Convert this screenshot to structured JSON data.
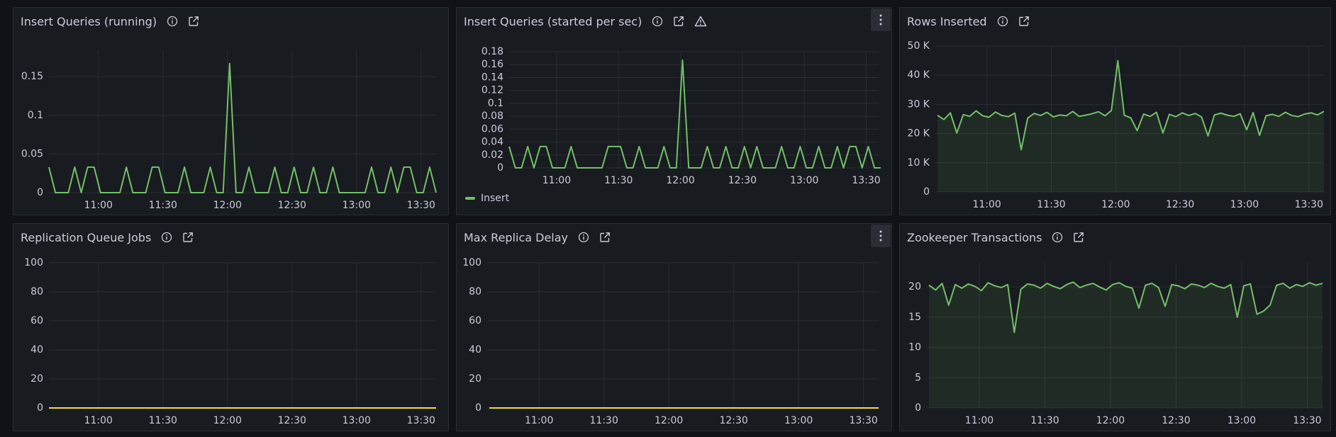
{
  "chart_data": [
    {
      "type": "line",
      "title": "Insert Queries (running)",
      "x": [
        "10:37",
        "10:40",
        "10:43",
        "10:46",
        "10:49",
        "10:52",
        "10:55",
        "10:58",
        "11:01",
        "11:04",
        "11:07",
        "11:10",
        "11:13",
        "11:16",
        "11:19",
        "11:22",
        "11:25",
        "11:28",
        "11:31",
        "11:34",
        "11:37",
        "11:40",
        "11:43",
        "11:46",
        "11:49",
        "11:52",
        "11:55",
        "11:58",
        "12:01",
        "12:04",
        "12:07",
        "12:10",
        "12:13",
        "12:16",
        "12:19",
        "12:22",
        "12:25",
        "12:28",
        "12:31",
        "12:34",
        "12:37",
        "12:40",
        "12:43",
        "12:46",
        "12:49",
        "12:52",
        "12:55",
        "12:58",
        "13:01",
        "13:04",
        "13:07",
        "13:10",
        "13:13",
        "13:16",
        "13:19",
        "13:22",
        "13:25",
        "13:28",
        "13:31",
        "13:34",
        "13:37"
      ],
      "values": [
        0.033,
        0,
        0,
        0,
        0.033,
        0,
        0.033,
        0.033,
        0,
        0,
        0,
        0,
        0.033,
        0,
        0,
        0,
        0.033,
        0.033,
        0,
        0,
        0,
        0.033,
        0,
        0,
        0,
        0.033,
        0,
        0,
        0.167,
        0,
        0,
        0.033,
        0,
        0,
        0,
        0.033,
        0,
        0,
        0.033,
        0,
        0,
        0.033,
        0,
        0,
        0.033,
        0,
        0,
        0,
        0,
        0,
        0.033,
        0,
        0,
        0.033,
        0,
        0.033,
        0.033,
        0,
        0,
        0.033,
        0
      ],
      "color": "#73bf69",
      "fill_area": false,
      "xlim": [
        "10:37",
        "13:37"
      ],
      "xticks": [
        "11:00",
        "11:30",
        "12:00",
        "12:30",
        "13:00",
        "13:30"
      ],
      "ylim": [
        0,
        0.185
      ],
      "yticks": [
        0,
        0.05,
        0.1,
        0.15
      ],
      "grid": true
    },
    {
      "type": "line",
      "title": "Insert Queries (started per sec)",
      "x": [
        "10:37",
        "10:40",
        "10:43",
        "10:46",
        "10:49",
        "10:52",
        "10:55",
        "10:58",
        "11:01",
        "11:04",
        "11:07",
        "11:10",
        "11:13",
        "11:16",
        "11:19",
        "11:22",
        "11:25",
        "11:28",
        "11:31",
        "11:34",
        "11:37",
        "11:40",
        "11:43",
        "11:46",
        "11:49",
        "11:52",
        "11:55",
        "11:58",
        "12:01",
        "12:04",
        "12:07",
        "12:10",
        "12:13",
        "12:16",
        "12:19",
        "12:22",
        "12:25",
        "12:28",
        "12:31",
        "12:34",
        "12:37",
        "12:40",
        "12:43",
        "12:46",
        "12:49",
        "12:52",
        "12:55",
        "12:58",
        "13:01",
        "13:04",
        "13:07",
        "13:10",
        "13:13",
        "13:16",
        "13:19",
        "13:22",
        "13:25",
        "13:28",
        "13:31",
        "13:34",
        "13:37"
      ],
      "series": [
        {
          "name": "Insert",
          "color": "#73bf69",
          "values": [
            0.033,
            0,
            0,
            0.033,
            0,
            0.033,
            0.033,
            0,
            0,
            0,
            0.033,
            0,
            0,
            0,
            0,
            0,
            0.033,
            0.033,
            0.033,
            0,
            0,
            0.033,
            0,
            0,
            0,
            0.033,
            0,
            0,
            0.167,
            0,
            0,
            0,
            0.033,
            0,
            0,
            0.033,
            0,
            0,
            0.033,
            0,
            0.033,
            0,
            0,
            0,
            0.033,
            0,
            0,
            0.033,
            0,
            0,
            0.033,
            0,
            0,
            0.033,
            0,
            0.033,
            0.033,
            0,
            0.033,
            0,
            0
          ]
        }
      ],
      "fill_area": false,
      "legend": "bottom-left",
      "xlim": [
        "10:37",
        "13:36"
      ],
      "xticks": [
        "11:00",
        "11:30",
        "12:00",
        "12:30",
        "13:00",
        "13:30"
      ],
      "ylim": [
        0,
        0.18
      ],
      "yticks": [
        0,
        0.02,
        0.04,
        0.06,
        0.08,
        0.1,
        0.12,
        0.14,
        0.16,
        0.18
      ],
      "grid": true
    },
    {
      "type": "line",
      "title": "Rows Inserted",
      "x": [
        "10:37",
        "10:40",
        "10:43",
        "10:46",
        "10:49",
        "10:52",
        "10:55",
        "10:58",
        "11:01",
        "11:04",
        "11:07",
        "11:10",
        "11:13",
        "11:16",
        "11:19",
        "11:22",
        "11:25",
        "11:28",
        "11:31",
        "11:34",
        "11:37",
        "11:40",
        "11:43",
        "11:46",
        "11:49",
        "11:52",
        "11:55",
        "11:58",
        "12:01",
        "12:04",
        "12:07",
        "12:10",
        "12:13",
        "12:16",
        "12:19",
        "12:22",
        "12:25",
        "12:28",
        "12:31",
        "12:34",
        "12:37",
        "12:40",
        "12:43",
        "12:46",
        "12:49",
        "12:52",
        "12:55",
        "12:58",
        "13:01",
        "13:04",
        "13:07",
        "13:10",
        "13:13",
        "13:16",
        "13:19",
        "13:22",
        "13:25",
        "13:28",
        "13:31",
        "13:34",
        "13:37"
      ],
      "values": [
        26300,
        24800,
        27100,
        20200,
        26500,
        25900,
        27800,
        26100,
        25600,
        27400,
        26200,
        25800,
        27000,
        14500,
        25300,
        26900,
        26200,
        27300,
        25700,
        26400,
        26100,
        27600,
        25900,
        26300,
        26800,
        27500,
        26100,
        27900,
        45000,
        26300,
        25400,
        21000,
        26700,
        25900,
        27300,
        20200,
        26600,
        25800,
        27100,
        26200,
        26900,
        25700,
        19200,
        26400,
        27000,
        26300,
        25900,
        26800,
        21300,
        27200,
        19400,
        26100,
        26600,
        25900,
        27300,
        26200,
        25800,
        26700,
        27100,
        26400,
        27600
      ],
      "color": "#73bf69",
      "fill_area": true,
      "xlim": [
        "10:36",
        "13:37"
      ],
      "xticks": [
        "11:00",
        "11:30",
        "12:00",
        "12:30",
        "13:00",
        "13:30"
      ],
      "ylim": [
        0,
        50000
      ],
      "yticks": [
        0,
        {
          "value": 10000,
          "label": "10 K"
        },
        {
          "value": 20000,
          "label": "20 K"
        },
        {
          "value": 30000,
          "label": "30 K"
        },
        {
          "value": 40000,
          "label": "40 K"
        },
        {
          "value": 50000,
          "label": "50 K"
        }
      ],
      "grid": true
    },
    {
      "type": "line",
      "title": "Replication Queue Jobs",
      "x": [
        "10:37",
        "10:40",
        "10:43",
        "10:46",
        "10:49",
        "10:52",
        "10:55",
        "10:58",
        "11:01",
        "11:04",
        "11:07",
        "11:10",
        "11:13",
        "11:16",
        "11:19",
        "11:22",
        "11:25",
        "11:28",
        "11:31",
        "11:34",
        "11:37",
        "11:40",
        "11:43",
        "11:46",
        "11:49",
        "11:52",
        "11:55",
        "11:58",
        "12:01",
        "12:04",
        "12:07",
        "12:10",
        "12:13",
        "12:16",
        "12:19",
        "12:22",
        "12:25",
        "12:28",
        "12:31",
        "12:34",
        "12:37",
        "12:40",
        "12:43",
        "12:46",
        "12:49",
        "12:52",
        "12:55",
        "12:58",
        "13:01",
        "13:04",
        "13:07",
        "13:10",
        "13:13",
        "13:16",
        "13:19",
        "13:22",
        "13:25",
        "13:28",
        "13:31",
        "13:34",
        "13:37"
      ],
      "values": [
        0,
        0,
        0,
        0,
        0,
        0,
        0,
        0,
        0,
        0,
        0,
        0,
        0,
        0,
        0,
        0,
        0,
        0,
        0,
        0,
        0,
        0,
        0,
        0,
        0,
        0,
        0,
        0,
        0,
        0,
        0,
        0,
        0,
        0,
        0,
        0,
        0,
        0,
        0,
        0,
        0,
        0,
        0,
        0,
        0,
        0,
        0,
        0,
        0,
        0,
        0,
        0,
        0,
        0,
        0,
        0,
        0,
        0,
        0,
        0,
        0
      ],
      "color": "#fade2a",
      "fill_area": false,
      "xlim": [
        "10:37",
        "13:37"
      ],
      "xticks": [
        "11:00",
        "11:30",
        "12:00",
        "12:30",
        "13:00",
        "13:30"
      ],
      "ylim": [
        0,
        100
      ],
      "yticks": [
        0,
        20,
        40,
        60,
        80,
        100
      ],
      "grid": true
    },
    {
      "type": "line",
      "title": "Max Replica Delay",
      "x": [
        "10:37",
        "10:40",
        "10:43",
        "10:46",
        "10:49",
        "10:52",
        "10:55",
        "10:58",
        "11:01",
        "11:04",
        "11:07",
        "11:10",
        "11:13",
        "11:16",
        "11:19",
        "11:22",
        "11:25",
        "11:28",
        "11:31",
        "11:34",
        "11:37",
        "11:40",
        "11:43",
        "11:46",
        "11:49",
        "11:52",
        "11:55",
        "11:58",
        "12:01",
        "12:04",
        "12:07",
        "12:10",
        "12:13",
        "12:16",
        "12:19",
        "12:22",
        "12:25",
        "12:28",
        "12:31",
        "12:34",
        "12:37",
        "12:40",
        "12:43",
        "12:46",
        "12:49",
        "12:52",
        "12:55",
        "12:58",
        "13:01",
        "13:04",
        "13:07",
        "13:10",
        "13:13",
        "13:16",
        "13:19",
        "13:22",
        "13:25",
        "13:28",
        "13:31",
        "13:34",
        "13:37"
      ],
      "values": [
        0,
        0,
        0,
        0,
        0,
        0,
        0,
        0,
        0,
        0,
        0,
        0,
        0,
        0,
        0,
        0,
        0,
        0,
        0,
        0,
        0,
        0,
        0,
        0,
        0,
        0,
        0,
        0,
        0,
        0,
        0,
        0,
        0,
        0,
        0,
        0,
        0,
        0,
        0,
        0,
        0,
        0,
        0,
        0,
        0,
        0,
        0,
        0,
        0,
        0,
        0,
        0,
        0,
        0,
        0,
        0,
        0,
        0,
        0,
        0,
        0
      ],
      "color": "#fade2a",
      "fill_area": false,
      "xlim": [
        "10:36",
        "13:37"
      ],
      "xticks": [
        "11:00",
        "11:30",
        "12:00",
        "12:30",
        "13:00",
        "13:30"
      ],
      "ylim": [
        0,
        100
      ],
      "yticks": [
        0,
        20,
        40,
        60,
        80,
        100
      ],
      "grid": true
    },
    {
      "type": "line",
      "title": "Zookeeper Transactions",
      "x": [
        "10:37",
        "10:40",
        "10:43",
        "10:46",
        "10:49",
        "10:52",
        "10:55",
        "10:58",
        "11:01",
        "11:04",
        "11:07",
        "11:10",
        "11:13",
        "11:16",
        "11:19",
        "11:22",
        "11:25",
        "11:28",
        "11:31",
        "11:34",
        "11:37",
        "11:40",
        "11:43",
        "11:46",
        "11:49",
        "11:52",
        "11:55",
        "11:58",
        "12:01",
        "12:04",
        "12:07",
        "12:10",
        "12:13",
        "12:16",
        "12:19",
        "12:22",
        "12:25",
        "12:28",
        "12:31",
        "12:34",
        "12:37",
        "12:40",
        "12:43",
        "12:46",
        "12:49",
        "12:52",
        "12:55",
        "12:58",
        "13:01",
        "13:04",
        "13:07",
        "13:10",
        "13:13",
        "13:16",
        "13:19",
        "13:22",
        "13:25",
        "13:28",
        "13:31",
        "13:34",
        "13:37"
      ],
      "values": [
        20.3,
        19.5,
        20.6,
        17,
        20.4,
        19.8,
        20.5,
        20.1,
        19.4,
        20.7,
        20.2,
        19.9,
        20.4,
        12.5,
        19.6,
        20.5,
        20.3,
        19.8,
        20.6,
        20.1,
        19.7,
        20.4,
        20.8,
        19.9,
        20.3,
        20.6,
        20,
        19.5,
        20.4,
        20.7,
        20.1,
        19.8,
        16.5,
        20.3,
        20.6,
        19.9,
        16.8,
        20.4,
        20.2,
        19.7,
        20.5,
        20.3,
        19.9,
        20.6,
        20.1,
        19.8,
        20.4,
        15,
        20.2,
        20.5,
        15.5,
        16,
        17,
        20.3,
        20.6,
        19.8,
        20.4,
        20.1,
        20.7,
        20.3,
        20.6
      ],
      "color": "#73bf69",
      "fill_area": true,
      "xlim": [
        "10:36",
        "13:37"
      ],
      "xticks": [
        "11:00",
        "11:30",
        "12:00",
        "12:30",
        "13:00",
        "13:30"
      ],
      "ylim": [
        0,
        24
      ],
      "yticks": [
        0,
        5,
        10,
        15,
        20
      ],
      "grid": true
    }
  ]
}
